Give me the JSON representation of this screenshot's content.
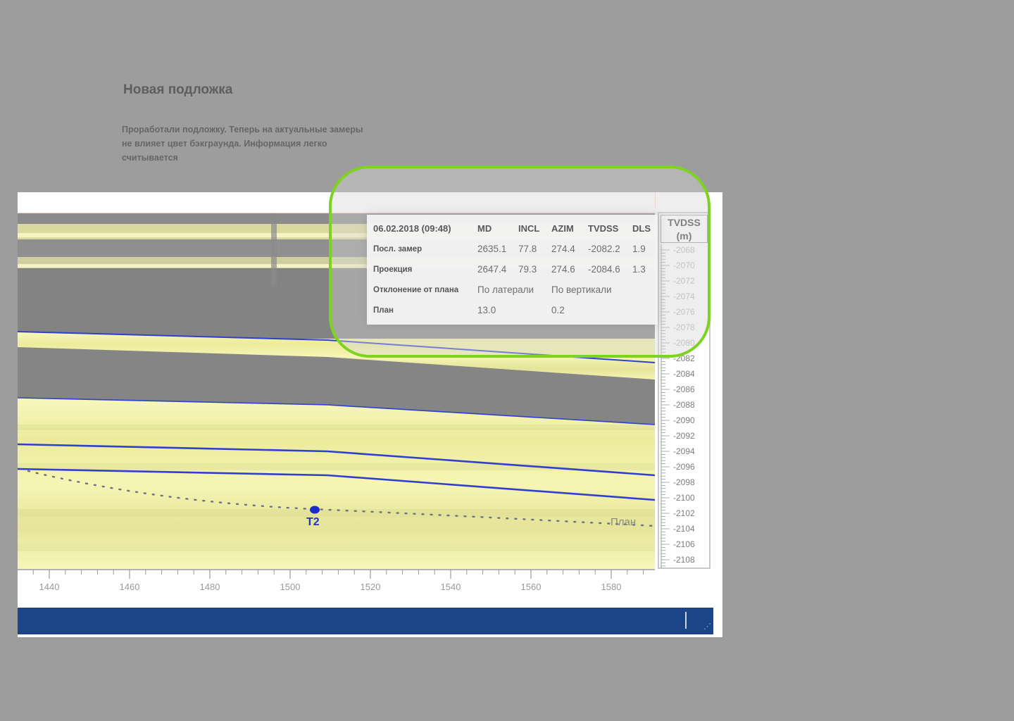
{
  "slide": {
    "title": "Новая подложка",
    "description": "Проработали подложку. Теперь на актуальные замеры не влияет цвет бэкграунда. Информация легко считывается"
  },
  "info_panel": {
    "timestamp": "06.02.2018 (09:48)",
    "columns": [
      "MD",
      "INCL",
      "AZIM",
      "TVDSS",
      "DLS"
    ],
    "rows": [
      {
        "label": "Посл. замер",
        "values": [
          "2635.1",
          "77.8",
          "274.4",
          "-2082.2",
          "1.9"
        ]
      },
      {
        "label": "Проекция",
        "values": [
          "2647.4",
          "79.3",
          "274.6",
          "-2084.6",
          "1.3"
        ]
      }
    ],
    "deviation": {
      "label": "Отклонение от плана",
      "lateral_label": "По латерали",
      "vertical_label": "По вертикали"
    },
    "plan": {
      "label": "План",
      "lateral_value": "13.0",
      "vertical_value": "0.2"
    }
  },
  "depth_axis": {
    "title": "TVDSS",
    "unit": "(m)",
    "ticks": [
      "-2068",
      "-2070",
      "-2072",
      "-2074",
      "-2076",
      "-2078",
      "-2080",
      "-2082",
      "-2084",
      "-2086",
      "-2088",
      "-2090",
      "-2092",
      "-2094",
      "-2096",
      "-2098",
      "-2100",
      "-2102",
      "-2104",
      "-2106",
      "-2108"
    ]
  },
  "md_axis": {
    "ticks": [
      "1440",
      "1460",
      "1480",
      "1500",
      "1520",
      "1540",
      "1560",
      "1580"
    ]
  },
  "plot": {
    "target_label": "T2",
    "plan_label": "План",
    "colors": {
      "horizon": "#2f3fd0",
      "plan_path": "#6e7080",
      "target": "#1a2bc8",
      "sand": "#f4f3a6",
      "shale": "#838383",
      "highlight": "#7ed321",
      "status_bar": "#1c4589"
    }
  }
}
